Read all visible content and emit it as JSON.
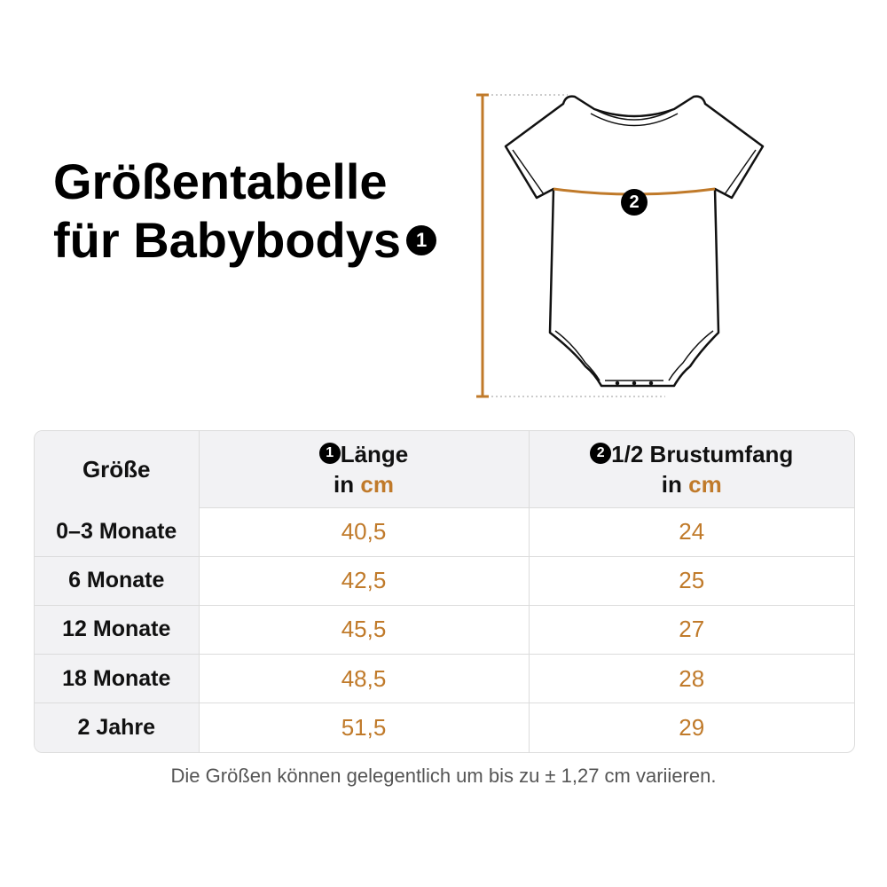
{
  "heading": {
    "line1": "Größentabelle",
    "line2": "für Babybodys",
    "marker": "1"
  },
  "diagram": {
    "length_marker": "1",
    "chest_marker": "2",
    "accent_color": "#c07a2a",
    "garment_icon": "baby-bodysuit-icon"
  },
  "table": {
    "headers": {
      "size": "Größe",
      "length_marker": "1",
      "length_label": "Länge",
      "length_unit_prefix": "in",
      "length_unit": "cm",
      "chest_marker": "2",
      "chest_label": "1/2 Brustumfang",
      "chest_unit_prefix": "in",
      "chest_unit": "cm"
    },
    "rows": [
      {
        "size": "0–3 Monate",
        "length": "40,5",
        "chest": "24"
      },
      {
        "size": "6 Monate",
        "length": "42,5",
        "chest": "25"
      },
      {
        "size": "12 Monate",
        "length": "45,5",
        "chest": "27"
      },
      {
        "size": "18 Monate",
        "length": "48,5",
        "chest": "28"
      },
      {
        "size": "2 Jahre",
        "length": "51,5",
        "chest": "29"
      }
    ],
    "header_bg": "#f2f2f4",
    "value_color": "#c07a2a"
  },
  "footnote": "Die Größen können gelegentlich um bis zu ± 1,27 cm variieren."
}
